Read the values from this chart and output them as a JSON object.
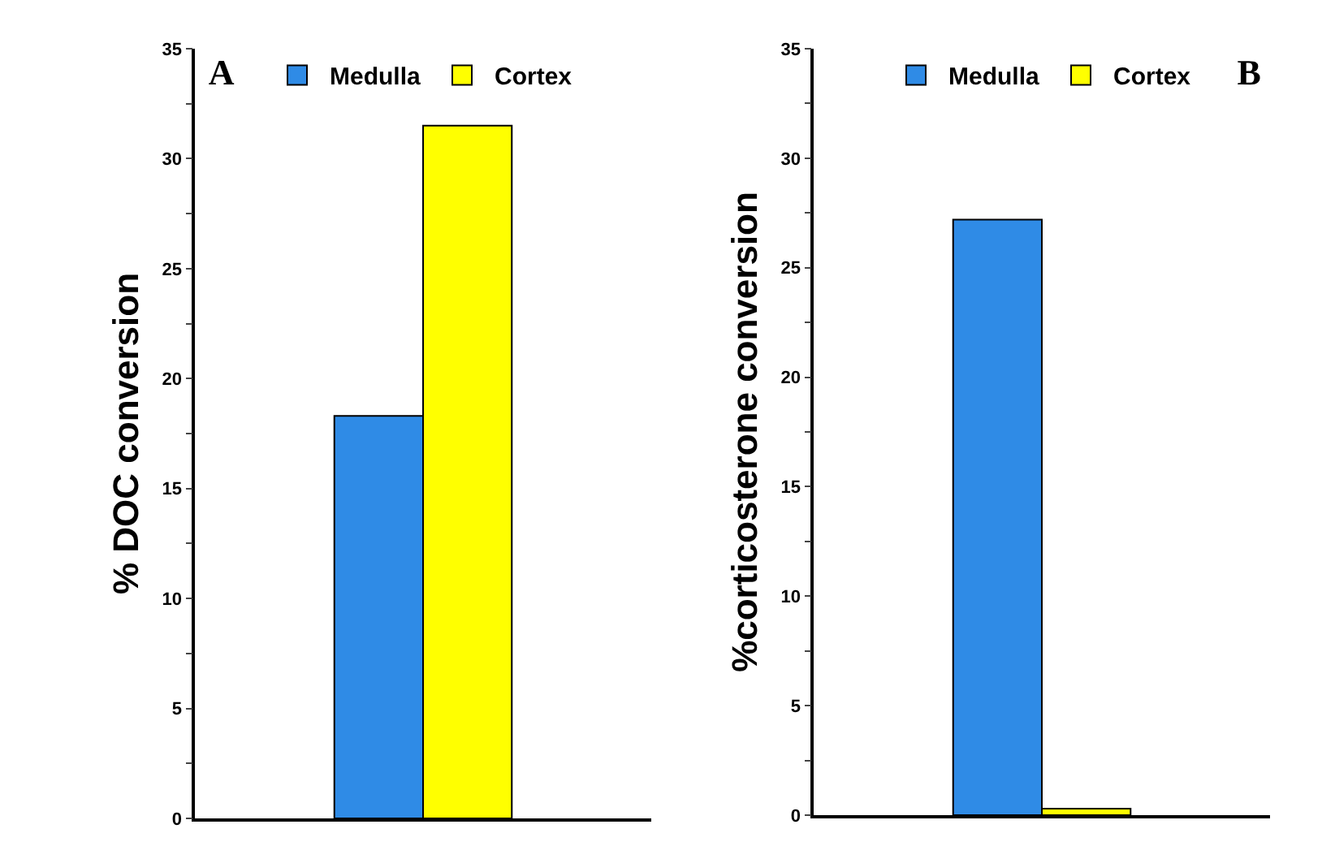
{
  "chart_data": [
    {
      "type": "bar",
      "title": "A",
      "ylabel": "% DOC conversion",
      "categories": [
        null
      ],
      "series": [
        {
          "name": "Medulla",
          "color": "#2f8be6",
          "values": [
            18.3
          ]
        },
        {
          "name": "Cortex",
          "color": "#ffff00",
          "values": [
            31.5
          ]
        }
      ],
      "ylim": [
        0,
        35
      ],
      "yticks": [
        0,
        {
          "value": 2.5,
          "label": null
        },
        5,
        {
          "value": 7.5,
          "label": null
        },
        10,
        {
          "value": 12.5,
          "label": null
        },
        15,
        {
          "value": 17.5,
          "label": null
        },
        20,
        {
          "value": 22.5,
          "label": null
        },
        25,
        {
          "value": 27.5,
          "label": null
        },
        30,
        {
          "value": 32.5,
          "label": null
        },
        35
      ],
      "grid": false,
      "legend": "top"
    },
    {
      "type": "bar",
      "title": "B",
      "ylabel": "%corticosterone conversion",
      "categories": [
        null
      ],
      "series": [
        {
          "name": "Medulla",
          "color": "#2f8be6",
          "values": [
            27.2
          ]
        },
        {
          "name": "Cortex",
          "color": "#ffff00",
          "values": [
            0.3
          ]
        }
      ],
      "ylim": [
        0,
        35
      ],
      "yticks": [
        0,
        {
          "value": 2.5,
          "label": null
        },
        5,
        {
          "value": 7.5,
          "label": null
        },
        10,
        {
          "value": 12.5,
          "label": null
        },
        15,
        {
          "value": 17.5,
          "label": null
        },
        20,
        {
          "value": 22.5,
          "label": null
        },
        25,
        {
          "value": 27.5,
          "label": null
        },
        30,
        {
          "value": 32.5,
          "label": null
        },
        35
      ],
      "grid": false,
      "legend": "top"
    }
  ]
}
